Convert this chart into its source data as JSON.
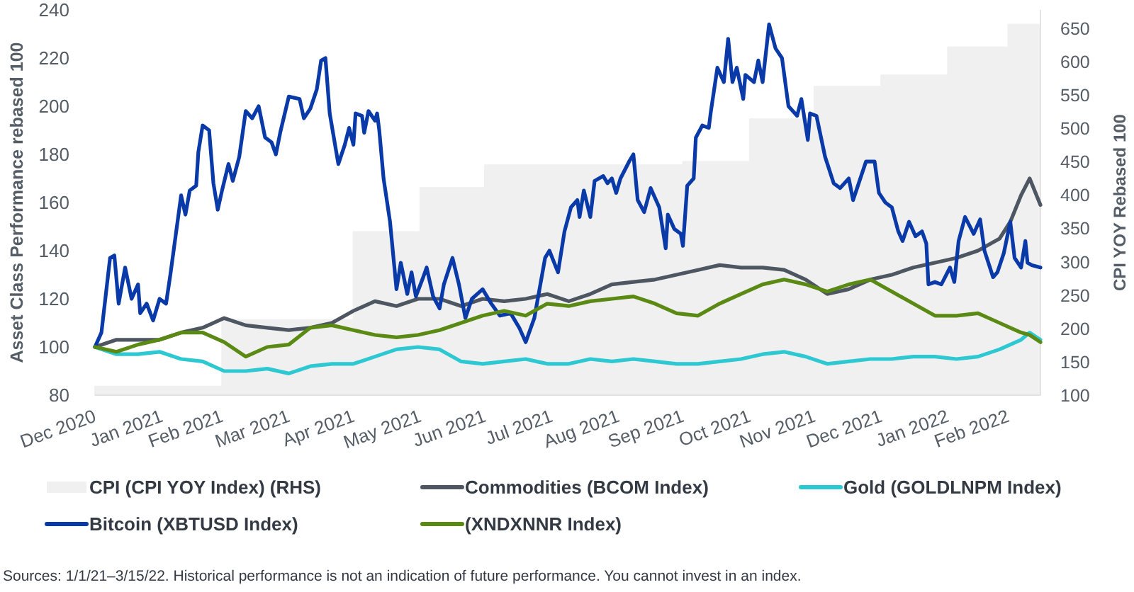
{
  "chart_data": {
    "type": "line",
    "ylabel": "Asset Class Performance rebased 100",
    "y2label": "CPI YOY Rebased 100",
    "xlim": [
      "2020-12-31",
      "2022-03-15"
    ],
    "xticks": [
      {
        "value": "2020-12-31",
        "label": "Dec 2020"
      },
      {
        "value": "2021-01-31",
        "label": "Jan 2021"
      },
      {
        "value": "2021-02-28",
        "label": "Feb 2021"
      },
      {
        "value": "2021-03-31",
        "label": "Mar 2021"
      },
      {
        "value": "2021-04-30",
        "label": "Apr 2021"
      },
      {
        "value": "2021-05-31",
        "label": "May 2021"
      },
      {
        "value": "2021-06-30",
        "label": "Jun 2021"
      },
      {
        "value": "2021-07-31",
        "label": "Jul 2021"
      },
      {
        "value": "2021-08-31",
        "label": "Aug 2021"
      },
      {
        "value": "2021-09-30",
        "label": "Sep 2021"
      },
      {
        "value": "2021-10-31",
        "label": "Oct 2021"
      },
      {
        "value": "2021-11-30",
        "label": "Nov 2021"
      },
      {
        "value": "2021-12-31",
        "label": "Dec 2021"
      },
      {
        "value": "2022-01-31",
        "label": "Jan 2022"
      },
      {
        "value": "2022-02-28",
        "label": "Feb 2022"
      }
    ],
    "ylim": [
      80,
      240
    ],
    "yticks": [
      80,
      100,
      120,
      140,
      160,
      180,
      200,
      220,
      240
    ],
    "y2lim": [
      100,
      678
    ],
    "y2ticks": [
      100,
      150,
      200,
      250,
      300,
      350,
      400,
      450,
      500,
      550,
      600,
      650
    ],
    "legend": "bottom",
    "annotations": [
      "Sources: 1/1/21–3/15/22. Historical performance is not an indication of future performance. You cannot invest in an index."
    ],
    "x": [
      "2020-12-31",
      "2021-01-10",
      "2021-01-20",
      "2021-01-30",
      "2021-02-09",
      "2021-02-19",
      "2021-03-01",
      "2021-03-11",
      "2021-03-21",
      "2021-03-31",
      "2021-04-10",
      "2021-04-20",
      "2021-04-30",
      "2021-05-10",
      "2021-05-20",
      "2021-05-30",
      "2021-06-09",
      "2021-06-19",
      "2021-06-29",
      "2021-07-09",
      "2021-07-19",
      "2021-07-29",
      "2021-08-08",
      "2021-08-18",
      "2021-08-28",
      "2021-09-07",
      "2021-09-17",
      "2021-09-27",
      "2021-10-07",
      "2021-10-17",
      "2021-10-27",
      "2021-11-06",
      "2021-11-16",
      "2021-11-26",
      "2021-12-06",
      "2021-12-16",
      "2021-12-26",
      "2022-01-05",
      "2022-01-15",
      "2022-01-25",
      "2022-02-04",
      "2022-02-14",
      "2022-02-24",
      "2022-03-01",
      "2022-03-06",
      "2022-03-10",
      "2022-03-15"
    ],
    "series": [
      {
        "name": "CPI (CPI YOY Index) (RHS)",
        "type": "area",
        "axis": "y2",
        "color": "#f0f0f0",
        "x": [
          "2020-12-31",
          "2021-02-28",
          "2021-02-28",
          "2021-04-30",
          "2021-04-30",
          "2021-05-31",
          "2021-05-31",
          "2021-06-30",
          "2021-06-30",
          "2021-09-30",
          "2021-09-30",
          "2021-10-31",
          "2021-10-31",
          "2021-11-30",
          "2021-11-30",
          "2021-12-31",
          "2021-12-31",
          "2022-01-31",
          "2022-01-31",
          "2022-02-28",
          "2022-02-28",
          "2022-03-15"
        ],
        "values": [
          113,
          113,
          213,
          213,
          345,
          345,
          411,
          411,
          445,
          445,
          450,
          450,
          514,
          514,
          563,
          563,
          580,
          580,
          622,
          622,
          656,
          656
        ]
      },
      {
        "name": "Commodities (BCOM Index)",
        "color": "#4d5661",
        "values": [
          100,
          103,
          103,
          103,
          106,
          108,
          112,
          109,
          108,
          107,
          108,
          110,
          115,
          119,
          117,
          120,
          120,
          117,
          120,
          119,
          120,
          122,
          119,
          122,
          126,
          127,
          128,
          130,
          132,
          134,
          133,
          133,
          132,
          128,
          122,
          124,
          128,
          130,
          133,
          135,
          137,
          140,
          145,
          152,
          163,
          170,
          159
        ]
      },
      {
        "name": "Gold (GOLDLNPM Index)",
        "color": "#2ec8d2",
        "values": [
          100,
          97,
          97,
          98,
          95,
          94,
          90,
          90,
          91,
          89,
          92,
          93,
          93,
          96,
          99,
          100,
          99,
          94,
          93,
          94,
          95,
          93,
          93,
          95,
          94,
          95,
          94,
          93,
          93,
          94,
          95,
          97,
          98,
          96,
          93,
          94,
          95,
          95,
          96,
          96,
          95,
          96,
          99,
          101,
          103,
          106,
          103
        ]
      },
      {
        "name": "Bitcoin (XBTUSD Index)",
        "color": "#0a3aa8",
        "x": [
          "2020-12-31",
          "2021-01-03",
          "2021-01-07",
          "2021-01-09",
          "2021-01-11",
          "2021-01-14",
          "2021-01-17",
          "2021-01-20",
          "2021-01-21",
          "2021-01-24",
          "2021-01-27",
          "2021-01-30",
          "2021-02-02",
          "2021-02-04",
          "2021-02-09",
          "2021-02-11",
          "2021-02-13",
          "2021-02-16",
          "2021-02-17",
          "2021-02-19",
          "2021-02-22",
          "2021-02-24",
          "2021-02-26",
          "2021-02-28",
          "2021-03-03",
          "2021-03-05",
          "2021-03-08",
          "2021-03-11",
          "2021-03-14",
          "2021-03-17",
          "2021-03-20",
          "2021-03-23",
          "2021-03-25",
          "2021-03-27",
          "2021-03-31",
          "2021-04-05",
          "2021-04-07",
          "2021-04-10",
          "2021-04-13",
          "2021-04-15",
          "2021-04-17",
          "2021-04-19",
          "2021-04-23",
          "2021-04-26",
          "2021-04-28",
          "2021-04-30",
          "2021-05-01",
          "2021-05-04",
          "2021-05-05",
          "2021-05-07",
          "2021-05-10",
          "2021-05-11",
          "2021-05-12",
          "2021-05-14",
          "2021-05-17",
          "2021-05-20",
          "2021-05-22",
          "2021-05-25",
          "2021-05-27",
          "2021-05-29",
          "2021-06-01",
          "2021-06-03",
          "2021-06-06",
          "2021-06-09",
          "2021-06-11",
          "2021-06-15",
          "2021-06-18",
          "2021-06-21",
          "2021-06-24",
          "2021-06-29",
          "2021-07-03",
          "2021-07-07",
          "2021-07-12",
          "2021-07-16",
          "2021-07-19",
          "2021-07-23",
          "2021-07-28",
          "2021-07-30",
          "2021-08-03",
          "2021-08-06",
          "2021-08-09",
          "2021-08-12",
          "2021-08-13",
          "2021-08-15",
          "2021-08-18",
          "2021-08-20",
          "2021-08-24",
          "2021-08-26",
          "2021-08-28",
          "2021-08-30",
          "2021-09-01",
          "2021-09-05",
          "2021-09-07",
          "2021-09-09",
          "2021-09-12",
          "2021-09-15",
          "2021-09-19",
          "2021-09-22",
          "2021-09-23",
          "2021-09-26",
          "2021-09-29",
          "2021-09-30",
          "2021-10-02",
          "2021-10-05",
          "2021-10-06",
          "2021-10-09",
          "2021-10-12",
          "2021-10-13",
          "2021-10-16",
          "2021-10-19",
          "2021-10-21",
          "2021-10-23",
          "2021-10-25",
          "2021-10-28",
          "2021-10-29",
          "2021-11-02",
          "2021-11-04",
          "2021-11-06",
          "2021-11-09",
          "2021-11-12",
          "2021-11-15",
          "2021-11-18",
          "2021-11-22",
          "2021-11-24",
          "2021-11-27",
          "2021-11-28",
          "2021-12-01",
          "2021-12-05",
          "2021-12-09",
          "2021-12-12",
          "2021-12-16",
          "2021-12-18",
          "2021-12-21",
          "2021-12-24",
          "2021-12-28",
          "2021-12-30",
          "2022-01-02",
          "2022-01-05",
          "2022-01-08",
          "2022-01-10",
          "2022-01-13",
          "2022-01-16",
          "2022-01-19",
          "2022-01-21",
          "2022-01-22",
          "2022-01-25",
          "2022-01-28",
          "2022-02-01",
          "2022-02-03",
          "2022-02-05",
          "2022-02-08",
          "2022-02-12",
          "2022-02-15",
          "2022-02-17",
          "2022-02-21",
          "2022-02-23",
          "2022-02-26",
          "2022-03-01",
          "2022-03-03",
          "2022-03-06",
          "2022-03-08",
          "2022-03-09",
          "2022-03-11",
          "2022-03-15"
        ],
        "values": [
          100,
          106,
          137,
          138,
          118,
          133,
          120,
          126,
          114,
          118,
          111,
          120,
          118,
          130,
          163,
          155,
          165,
          167,
          181,
          192,
          190,
          168,
          157,
          165,
          176,
          169,
          179,
          198,
          195,
          200,
          187,
          185,
          180,
          189,
          204,
          203,
          195,
          199,
          207,
          219,
          220,
          197,
          176,
          184,
          191,
          184,
          197,
          196,
          189,
          198,
          194,
          197,
          190,
          170,
          152,
          124,
          135,
          122,
          131,
          121,
          128,
          133,
          121,
          116,
          126,
          137,
          126,
          112,
          120,
          124,
          118,
          113,
          114,
          108,
          102,
          112,
          137,
          140,
          131,
          148,
          158,
          161,
          154,
          165,
          154,
          169,
          171,
          168,
          170,
          164,
          170,
          177,
          180,
          161,
          156,
          166,
          158,
          141,
          155,
          149,
          147,
          142,
          167,
          170,
          187,
          192,
          191,
          198,
          216,
          210,
          228,
          210,
          216,
          203,
          213,
          210,
          219,
          210,
          234,
          224,
          220,
          200,
          196,
          203,
          186,
          197,
          196,
          179,
          168,
          166,
          170,
          161,
          169,
          177,
          177,
          164,
          160,
          158,
          148,
          144,
          152,
          146,
          148,
          143,
          126,
          127,
          126,
          133,
          127,
          144,
          154,
          147,
          153,
          140,
          129,
          131,
          139,
          152,
          137,
          133,
          144,
          135,
          134,
          133
        ]
      },
      {
        "name": "(XNDXNNR Index)",
        "color": "#5b8a14",
        "values": [
          100,
          98,
          101,
          103,
          106,
          106,
          102,
          96,
          100,
          101,
          108,
          109,
          107,
          105,
          104,
          105,
          107,
          110,
          113,
          115,
          113,
          118,
          117,
          119,
          120,
          121,
          118,
          114,
          113,
          118,
          122,
          126,
          128,
          126,
          123,
          126,
          128,
          123,
          118,
          113,
          113,
          114,
          110,
          108,
          106,
          105,
          102
        ]
      }
    ]
  }
}
